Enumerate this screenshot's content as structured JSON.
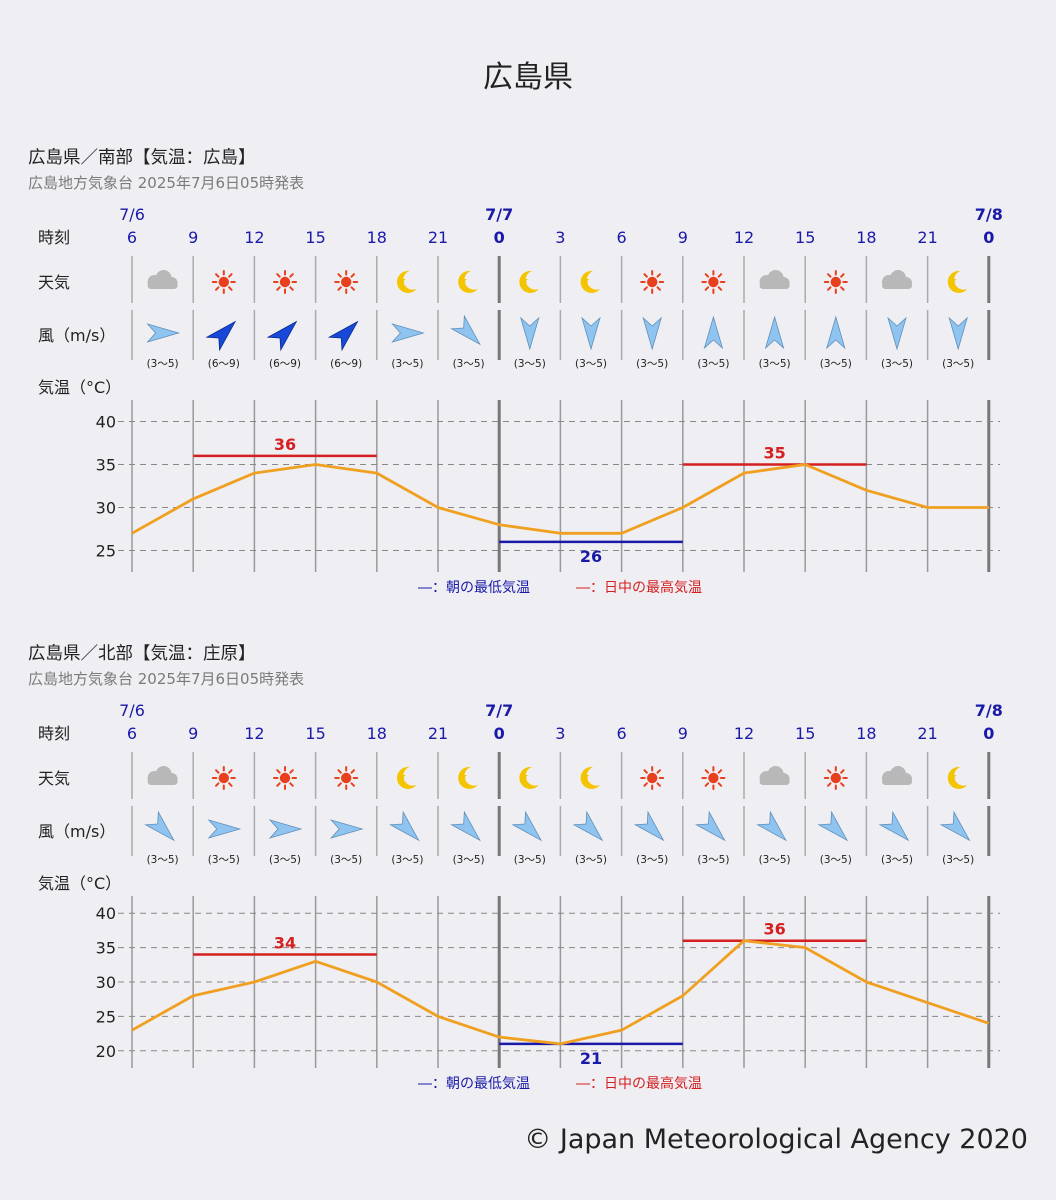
{
  "page": {
    "title": "広島県",
    "copyright": "© Japan Meteorological Agency 2020"
  },
  "colors": {
    "date_blue": "#1a1aa8",
    "max_red": "#d42020",
    "min_blue": "#1a1aa8",
    "line_orange": "#f0a020",
    "grid_gray": "#888888",
    "text_gray": "#7a7a7a",
    "sun_red": "#e8401c",
    "moon_yellow": "#f5c400",
    "cloud_gray": "#b8b8b8",
    "arrow_light": "#8fc4f0",
    "arrow_dark": "#1848d8"
  },
  "panels": [
    {
      "heading": "広島県／南部【気温：広島】",
      "issued": "広島地方気象台 2025年7月6日05時発表",
      "row_labels": {
        "time": "時刻",
        "weather": "天気",
        "wind": "風（m/s）",
        "temp": "気温（°C）"
      },
      "date_labels": [
        {
          "text": "7/6",
          "at_hour_index": 0
        },
        {
          "text": "7/7",
          "at_hour_index": 6
        },
        {
          "text": "7/8",
          "at_hour_index": 14
        }
      ],
      "hours": [
        "6",
        "9",
        "12",
        "15",
        "18",
        "21",
        "0",
        "3",
        "6",
        "9",
        "12",
        "15",
        "18",
        "21",
        "0"
      ],
      "weather": [
        "cloudy",
        "sunny",
        "sunny",
        "sunny",
        "clear-night",
        "clear-night",
        "clear-night",
        "clear-night",
        "sunny",
        "sunny",
        "cloudy",
        "sunny",
        "cloudy",
        "clear-night"
      ],
      "wind": [
        {
          "dir": "W",
          "speed": "(3～5)",
          "strong": false
        },
        {
          "dir": "SW",
          "speed": "(6～9)",
          "strong": true
        },
        {
          "dir": "SW",
          "speed": "(6～9)",
          "strong": true
        },
        {
          "dir": "SW",
          "speed": "(6～9)",
          "strong": true
        },
        {
          "dir": "W",
          "speed": "(3～5)",
          "strong": false
        },
        {
          "dir": "NW",
          "speed": "(3～5)",
          "strong": false
        },
        {
          "dir": "N",
          "speed": "(3～5)",
          "strong": false
        },
        {
          "dir": "N",
          "speed": "(3～5)",
          "strong": false
        },
        {
          "dir": "N",
          "speed": "(3～5)",
          "strong": false
        },
        {
          "dir": "S",
          "speed": "(3～5)",
          "strong": false
        },
        {
          "dir": "S",
          "speed": "(3～5)",
          "strong": false
        },
        {
          "dir": "S",
          "speed": "(3～5)",
          "strong": false
        },
        {
          "dir": "N",
          "speed": "(3～5)",
          "strong": false
        },
        {
          "dir": "N",
          "speed": "(3～5)",
          "strong": false
        }
      ],
      "legend": {
        "min": "―：朝の最低気温",
        "max": "―：日中の最高気温"
      }
    },
    {
      "heading": "広島県／北部【気温：庄原】",
      "issued": "広島地方気象台 2025年7月6日05時発表",
      "row_labels": {
        "time": "時刻",
        "weather": "天気",
        "wind": "風（m/s）",
        "temp": "気温（°C）"
      },
      "date_labels": [
        {
          "text": "7/6",
          "at_hour_index": 0
        },
        {
          "text": "7/7",
          "at_hour_index": 6
        },
        {
          "text": "7/8",
          "at_hour_index": 14
        }
      ],
      "hours": [
        "6",
        "9",
        "12",
        "15",
        "18",
        "21",
        "0",
        "3",
        "6",
        "9",
        "12",
        "15",
        "18",
        "21",
        "0"
      ],
      "weather": [
        "cloudy",
        "sunny",
        "sunny",
        "sunny",
        "clear-night",
        "clear-night",
        "clear-night",
        "clear-night",
        "sunny",
        "sunny",
        "cloudy",
        "sunny",
        "cloudy",
        "clear-night"
      ],
      "wind": [
        {
          "dir": "NW",
          "speed": "(3～5)",
          "strong": false
        },
        {
          "dir": "W",
          "speed": "(3～5)",
          "strong": false
        },
        {
          "dir": "W",
          "speed": "(3～5)",
          "strong": false
        },
        {
          "dir": "W",
          "speed": "(3～5)",
          "strong": false
        },
        {
          "dir": "NW",
          "speed": "(3～5)",
          "strong": false
        },
        {
          "dir": "NW",
          "speed": "(3～5)",
          "strong": false
        },
        {
          "dir": "NW",
          "speed": "(3～5)",
          "strong": false
        },
        {
          "dir": "NW",
          "speed": "(3～5)",
          "strong": false
        },
        {
          "dir": "NW",
          "speed": "(3～5)",
          "strong": false
        },
        {
          "dir": "NW",
          "speed": "(3～5)",
          "strong": false
        },
        {
          "dir": "NW",
          "speed": "(3～5)",
          "strong": false
        },
        {
          "dir": "NW",
          "speed": "(3～5)",
          "strong": false
        },
        {
          "dir": "NW",
          "speed": "(3～5)",
          "strong": false
        },
        {
          "dir": "NW",
          "speed": "(3～5)",
          "strong": false
        }
      ],
      "legend": {
        "min": "―：朝の最低気温",
        "max": "―：日中の最高気温"
      }
    }
  ],
  "chart_data": [
    {
      "type": "line",
      "x": [
        "7/6 6",
        "9",
        "12",
        "15",
        "18",
        "21",
        "7/7 0",
        "3",
        "6",
        "9",
        "12",
        "15",
        "18",
        "21",
        "7/8 0"
      ],
      "series": [
        {
          "values": [
            27,
            31,
            34,
            35,
            34,
            30,
            28,
            27,
            27,
            30,
            34,
            35,
            32,
            30,
            30
          ]
        }
      ],
      "daily_max": {
        "value": 36,
        "from_index": 1,
        "to_index": 4
      },
      "next_max": {
        "value": 35,
        "from_index": 9,
        "to_index": 12
      },
      "morning_min": {
        "value": 26,
        "from_index": 6,
        "to_index": 9
      },
      "yticks": [
        40,
        35,
        30,
        25
      ],
      "ylim": [
        22.5,
        42.5
      ],
      "grid": true,
      "xlabel": "",
      "ylabel": "気温（°C）"
    },
    {
      "type": "line",
      "x": [
        "7/6 6",
        "9",
        "12",
        "15",
        "18",
        "21",
        "7/7 0",
        "3",
        "6",
        "9",
        "12",
        "15",
        "18",
        "21",
        "7/8 0"
      ],
      "series": [
        {
          "values": [
            23,
            28,
            30,
            33,
            30,
            25,
            22,
            21,
            23,
            28,
            36,
            35,
            30,
            27,
            24
          ]
        }
      ],
      "daily_max": {
        "value": 34,
        "from_index": 1,
        "to_index": 4
      },
      "next_max": {
        "value": 36,
        "from_index": 9,
        "to_index": 12
      },
      "morning_min": {
        "value": 21,
        "from_index": 6,
        "to_index": 9
      },
      "yticks": [
        40,
        35,
        30,
        25,
        20
      ],
      "ylim": [
        17.5,
        42.5
      ],
      "grid": true,
      "xlabel": "",
      "ylabel": "気温（°C）"
    }
  ]
}
